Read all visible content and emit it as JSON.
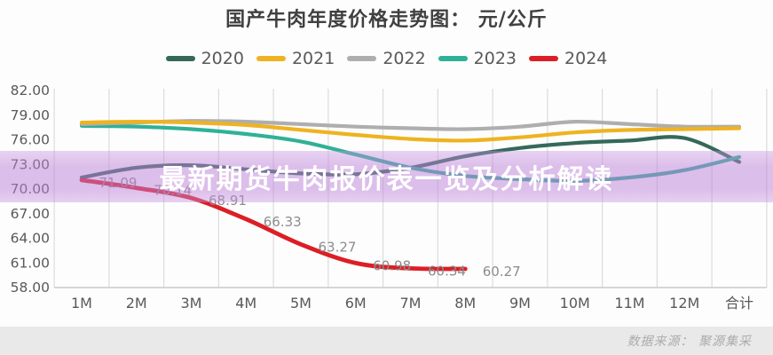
{
  "title": "国产牛肉年度价格走势图： 元/公斤",
  "banner": {
    "text": "最新期货牛肉报价表一览及分析解读"
  },
  "source": {
    "text": "数据来源： 聚源集采"
  },
  "colors": {
    "banner_overlay": "#BC80D8",
    "grid": "#dcdcdc",
    "axis": "#c9c9c9",
    "tick_text": "#595959",
    "data_label_text": "#8c8c8c"
  },
  "chart_data": {
    "type": "line",
    "title": "国产牛肉年度价格走势图： 元/公斤",
    "unit": "元/公斤",
    "categories": [
      "1M",
      "2M",
      "3M",
      "4M",
      "5M",
      "6M",
      "7M",
      "8M",
      "9M",
      "10M",
      "11M",
      "12M",
      "合计"
    ],
    "y_tick_labels": [
      "82.00",
      "79.00",
      "76.00",
      "73.00",
      "70.00",
      "67.00",
      "64.00",
      "61.00",
      "58.00"
    ],
    "ylim": [
      58,
      82
    ],
    "grid": "vertical-only",
    "legend_position": "top",
    "series": [
      {
        "name": "2020",
        "color": "#34695A",
        "values": [
          71.4,
          72.6,
          72.9,
          72.4,
          71.9,
          71.8,
          72.6,
          74.0,
          75.0,
          75.6,
          75.9,
          76.2,
          73.3
        ]
      },
      {
        "name": "2021",
        "color": "#EFB321",
        "values": [
          78.1,
          78.2,
          78.1,
          77.8,
          77.2,
          76.6,
          76.1,
          75.9,
          76.3,
          76.9,
          77.2,
          77.3,
          77.4
        ]
      },
      {
        "name": "2022",
        "color": "#AEAEAE",
        "values": [
          77.9,
          78.1,
          78.3,
          78.2,
          77.9,
          77.6,
          77.4,
          77.3,
          77.6,
          78.2,
          77.9,
          77.6,
          77.6
        ]
      },
      {
        "name": "2023",
        "color": "#2FB197",
        "values": [
          77.7,
          77.6,
          77.3,
          76.7,
          75.8,
          74.2,
          72.6,
          71.6,
          71.2,
          71.0,
          71.4,
          72.3,
          73.9
        ]
      },
      {
        "name": "2024",
        "color": "#DC1E25",
        "values": [
          71.09,
          70.14,
          68.91,
          66.33,
          63.27,
          60.98,
          60.34,
          60.27
        ],
        "data_labels": [
          "71.09",
          "70.14",
          "68.91",
          "66.33",
          "63.27",
          "60.98",
          "60.34",
          "60.27"
        ]
      }
    ]
  }
}
